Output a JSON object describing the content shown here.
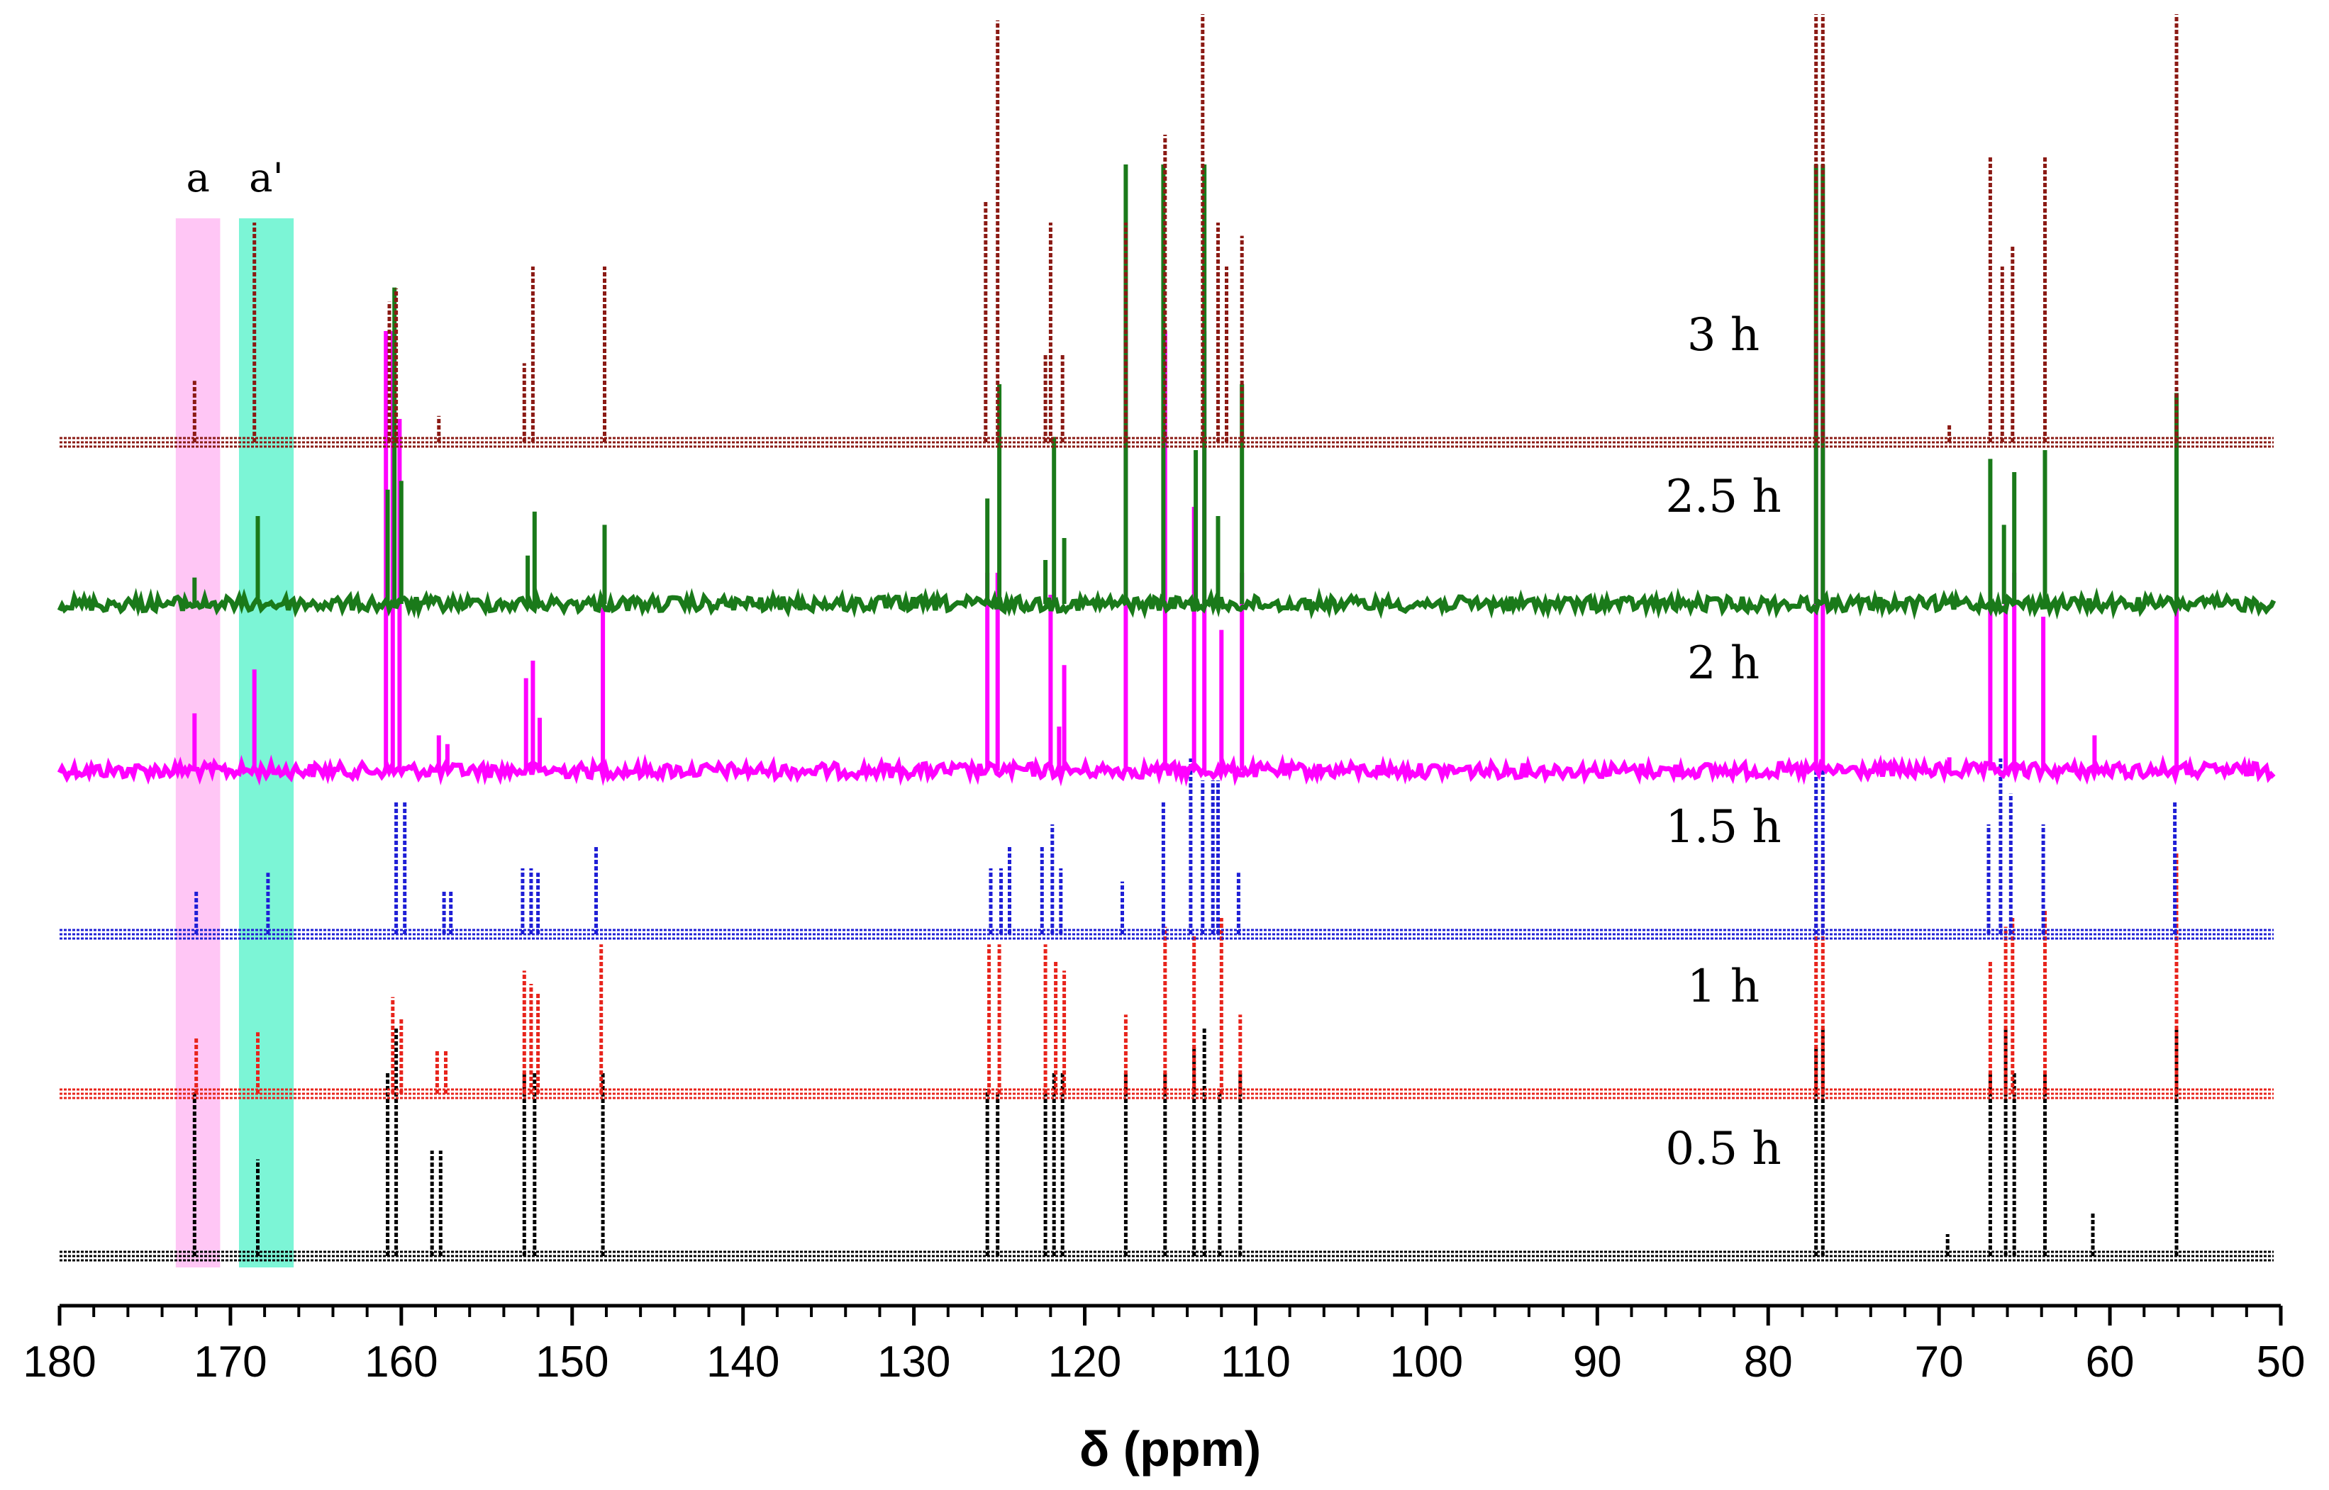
{
  "chart_data": {
    "type": "line",
    "title": "",
    "xlabel": "δ (ppm)",
    "ylabel": "",
    "xlim": [
      180,
      50
    ],
    "x_reversed": true,
    "x_ticks": [
      180,
      170,
      160,
      150,
      140,
      130,
      120,
      110,
      100,
      90,
      80,
      70,
      60,
      50
    ],
    "grid": false,
    "highlight_bands": [
      {
        "label": "a",
        "from_ppm": 173.2,
        "to_ppm": 170.6,
        "color": "#ffc6f5"
      },
      {
        "label": "a'",
        "from_ppm": 169.5,
        "to_ppm": 166.3,
        "color": "#7cf5d6"
      }
    ],
    "series": [
      {
        "name": "0.5 h",
        "color": "#000000",
        "style": "dotted",
        "peaks": [
          {
            "ppm": 172.1,
            "h": 0.38
          },
          {
            "ppm": 168.4,
            "h": 0.22
          },
          {
            "ppm": 160.8,
            "h": 0.42
          },
          {
            "ppm": 160.3,
            "h": 0.52
          },
          {
            "ppm": 158.2,
            "h": 0.24
          },
          {
            "ppm": 157.7,
            "h": 0.24
          },
          {
            "ppm": 152.8,
            "h": 0.42
          },
          {
            "ppm": 152.2,
            "h": 0.42
          },
          {
            "ppm": 148.2,
            "h": 0.42
          },
          {
            "ppm": 125.7,
            "h": 0.38
          },
          {
            "ppm": 125.1,
            "h": 0.38
          },
          {
            "ppm": 122.3,
            "h": 0.38
          },
          {
            "ppm": 121.8,
            "h": 0.42
          },
          {
            "ppm": 121.3,
            "h": 0.42
          },
          {
            "ppm": 117.6,
            "h": 0.42
          },
          {
            "ppm": 115.3,
            "h": 0.42
          },
          {
            "ppm": 113.6,
            "h": 0.48
          },
          {
            "ppm": 113.0,
            "h": 0.52
          },
          {
            "ppm": 112.1,
            "h": 0.38
          },
          {
            "ppm": 110.9,
            "h": 0.42
          },
          {
            "ppm": 77.2,
            "h": 0.48
          },
          {
            "ppm": 76.8,
            "h": 0.52
          },
          {
            "ppm": 69.5,
            "h": 0.05
          },
          {
            "ppm": 67.0,
            "h": 0.42
          },
          {
            "ppm": 66.1,
            "h": 0.52
          },
          {
            "ppm": 65.6,
            "h": 0.42
          },
          {
            "ppm": 63.8,
            "h": 0.42
          },
          {
            "ppm": 61.0,
            "h": 0.1
          },
          {
            "ppm": 56.1,
            "h": 0.52
          }
        ]
      },
      {
        "name": "1 h",
        "color": "#e8241c",
        "style": "dotted",
        "peaks": [
          {
            "ppm": 172.0,
            "h": 0.13
          },
          {
            "ppm": 168.4,
            "h": 0.14
          },
          {
            "ppm": 160.5,
            "h": 0.22
          },
          {
            "ppm": 160.0,
            "h": 0.17
          },
          {
            "ppm": 157.9,
            "h": 0.1
          },
          {
            "ppm": 157.4,
            "h": 0.1
          },
          {
            "ppm": 152.8,
            "h": 0.28
          },
          {
            "ppm": 152.4,
            "h": 0.25
          },
          {
            "ppm": 152.0,
            "h": 0.23
          },
          {
            "ppm": 148.3,
            "h": 0.34
          },
          {
            "ppm": 125.6,
            "h": 0.34
          },
          {
            "ppm": 125.0,
            "h": 0.34
          },
          {
            "ppm": 122.3,
            "h": 0.34
          },
          {
            "ppm": 121.7,
            "h": 0.3
          },
          {
            "ppm": 121.2,
            "h": 0.28
          },
          {
            "ppm": 117.6,
            "h": 0.18
          },
          {
            "ppm": 115.3,
            "h": 0.38
          },
          {
            "ppm": 113.6,
            "h": 0.36
          },
          {
            "ppm": 112.0,
            "h": 0.4
          },
          {
            "ppm": 110.9,
            "h": 0.18
          },
          {
            "ppm": 77.2,
            "h": 0.55
          },
          {
            "ppm": 76.8,
            "h": 0.55
          },
          {
            "ppm": 67.0,
            "h": 0.3
          },
          {
            "ppm": 66.1,
            "h": 0.38
          },
          {
            "ppm": 65.7,
            "h": 0.4
          },
          {
            "ppm": 63.8,
            "h": 0.42
          },
          {
            "ppm": 56.1,
            "h": 0.55
          }
        ]
      },
      {
        "name": "1.5 h",
        "color": "#1f1fd6",
        "style": "dotted",
        "peaks": [
          {
            "ppm": 172.0,
            "h": 0.1
          },
          {
            "ppm": 167.8,
            "h": 0.14
          },
          {
            "ppm": 160.3,
            "h": 0.3
          },
          {
            "ppm": 159.8,
            "h": 0.3
          },
          {
            "ppm": 157.5,
            "h": 0.1
          },
          {
            "ppm": 157.1,
            "h": 0.1
          },
          {
            "ppm": 152.9,
            "h": 0.15
          },
          {
            "ppm": 152.4,
            "h": 0.15
          },
          {
            "ppm": 152.0,
            "h": 0.14
          },
          {
            "ppm": 148.6,
            "h": 0.2
          },
          {
            "ppm": 125.5,
            "h": 0.15
          },
          {
            "ppm": 124.9,
            "h": 0.15
          },
          {
            "ppm": 124.4,
            "h": 0.2
          },
          {
            "ppm": 122.5,
            "h": 0.2
          },
          {
            "ppm": 121.9,
            "h": 0.25
          },
          {
            "ppm": 121.4,
            "h": 0.15
          },
          {
            "ppm": 117.8,
            "h": 0.12
          },
          {
            "ppm": 115.4,
            "h": 0.3
          },
          {
            "ppm": 113.8,
            "h": 0.4
          },
          {
            "ppm": 113.1,
            "h": 0.35
          },
          {
            "ppm": 112.5,
            "h": 0.35
          },
          {
            "ppm": 112.2,
            "h": 0.35
          },
          {
            "ppm": 111.0,
            "h": 0.14
          },
          {
            "ppm": 77.2,
            "h": 0.45
          },
          {
            "ppm": 76.8,
            "h": 0.45
          },
          {
            "ppm": 67.1,
            "h": 0.25
          },
          {
            "ppm": 66.4,
            "h": 0.4
          },
          {
            "ppm": 65.8,
            "h": 0.32
          },
          {
            "ppm": 63.9,
            "h": 0.25
          },
          {
            "ppm": 56.2,
            "h": 0.3
          }
        ]
      },
      {
        "name": "2 h",
        "color": "#ff00ff",
        "style": "solid",
        "peaks": [
          {
            "ppm": 172.1,
            "h": 0.13
          },
          {
            "ppm": 168.6,
            "h": 0.23
          },
          {
            "ppm": 160.9,
            "h": 1.0
          },
          {
            "ppm": 160.5,
            "h": 1.0
          },
          {
            "ppm": 160.1,
            "h": 0.8
          },
          {
            "ppm": 157.8,
            "h": 0.08
          },
          {
            "ppm": 157.3,
            "h": 0.06
          },
          {
            "ppm": 152.7,
            "h": 0.21
          },
          {
            "ppm": 152.3,
            "h": 0.25
          },
          {
            "ppm": 151.9,
            "h": 0.12
          },
          {
            "ppm": 148.2,
            "h": 0.37
          },
          {
            "ppm": 125.7,
            "h": 0.45
          },
          {
            "ppm": 125.1,
            "h": 0.45
          },
          {
            "ppm": 122.0,
            "h": 0.4
          },
          {
            "ppm": 121.5,
            "h": 0.1
          },
          {
            "ppm": 121.2,
            "h": 0.24
          },
          {
            "ppm": 117.6,
            "h": 1.0
          },
          {
            "ppm": 115.3,
            "h": 1.0
          },
          {
            "ppm": 113.6,
            "h": 0.6
          },
          {
            "ppm": 113.0,
            "h": 1.0
          },
          {
            "ppm": 112.0,
            "h": 0.32
          },
          {
            "ppm": 110.8,
            "h": 0.45
          },
          {
            "ppm": 77.2,
            "h": 1.0
          },
          {
            "ppm": 76.8,
            "h": 1.0
          },
          {
            "ppm": 69.4,
            "h": 0.03
          },
          {
            "ppm": 67.0,
            "h": 0.38
          },
          {
            "ppm": 66.1,
            "h": 0.4
          },
          {
            "ppm": 65.6,
            "h": 0.45
          },
          {
            "ppm": 63.9,
            "h": 0.35
          },
          {
            "ppm": 60.9,
            "h": 0.08
          },
          {
            "ppm": 56.1,
            "h": 0.45
          }
        ]
      },
      {
        "name": "2.5 h",
        "color": "#1a7a1a",
        "style": "solid",
        "peaks": [
          {
            "ppm": 172.1,
            "h": 0.06
          },
          {
            "ppm": 168.4,
            "h": 0.2
          },
          {
            "ppm": 160.8,
            "h": 0.26
          },
          {
            "ppm": 160.4,
            "h": 0.72
          },
          {
            "ppm": 160.0,
            "h": 0.28
          },
          {
            "ppm": 152.6,
            "h": 0.11
          },
          {
            "ppm": 152.2,
            "h": 0.21
          },
          {
            "ppm": 148.1,
            "h": 0.18
          },
          {
            "ppm": 125.7,
            "h": 0.24
          },
          {
            "ppm": 125.0,
            "h": 0.5
          },
          {
            "ppm": 122.3,
            "h": 0.1
          },
          {
            "ppm": 121.8,
            "h": 0.38
          },
          {
            "ppm": 121.2,
            "h": 0.15
          },
          {
            "ppm": 117.6,
            "h": 1.0
          },
          {
            "ppm": 115.4,
            "h": 1.0
          },
          {
            "ppm": 113.5,
            "h": 0.35
          },
          {
            "ppm": 113.0,
            "h": 1.0
          },
          {
            "ppm": 112.2,
            "h": 0.2
          },
          {
            "ppm": 110.8,
            "h": 0.5
          },
          {
            "ppm": 77.2,
            "h": 1.0
          },
          {
            "ppm": 76.8,
            "h": 1.0
          },
          {
            "ppm": 67.0,
            "h": 0.33
          },
          {
            "ppm": 66.2,
            "h": 0.18
          },
          {
            "ppm": 65.6,
            "h": 0.3
          },
          {
            "ppm": 63.8,
            "h": 0.35
          },
          {
            "ppm": 56.1,
            "h": 0.48
          }
        ]
      },
      {
        "name": "3 h",
        "color": "#8b1a14",
        "style": "dotted",
        "peaks": [
          {
            "ppm": 172.1,
            "h": 0.14
          },
          {
            "ppm": 168.6,
            "h": 0.5
          },
          {
            "ppm": 160.7,
            "h": 0.32
          },
          {
            "ppm": 160.3,
            "h": 0.35
          },
          {
            "ppm": 157.8,
            "h": 0.06
          },
          {
            "ppm": 152.8,
            "h": 0.18
          },
          {
            "ppm": 152.3,
            "h": 0.4
          },
          {
            "ppm": 148.1,
            "h": 0.4
          },
          {
            "ppm": 125.8,
            "h": 0.55
          },
          {
            "ppm": 125.1,
            "h": 0.96
          },
          {
            "ppm": 122.3,
            "h": 0.2
          },
          {
            "ppm": 122.0,
            "h": 0.5
          },
          {
            "ppm": 121.3,
            "h": 0.2
          },
          {
            "ppm": 117.6,
            "h": 0.5
          },
          {
            "ppm": 115.3,
            "h": 0.7
          },
          {
            "ppm": 113.1,
            "h": 1.0
          },
          {
            "ppm": 112.2,
            "h": 0.5
          },
          {
            "ppm": 111.7,
            "h": 0.4
          },
          {
            "ppm": 110.8,
            "h": 0.47
          },
          {
            "ppm": 77.2,
            "h": 1.0
          },
          {
            "ppm": 76.8,
            "h": 1.0
          },
          {
            "ppm": 69.4,
            "h": 0.04
          },
          {
            "ppm": 67.0,
            "h": 0.65
          },
          {
            "ppm": 66.3,
            "h": 0.4
          },
          {
            "ppm": 65.7,
            "h": 0.45
          },
          {
            "ppm": 63.8,
            "h": 0.65
          },
          {
            "ppm": 56.1,
            "h": 1.0
          }
        ]
      }
    ]
  }
}
